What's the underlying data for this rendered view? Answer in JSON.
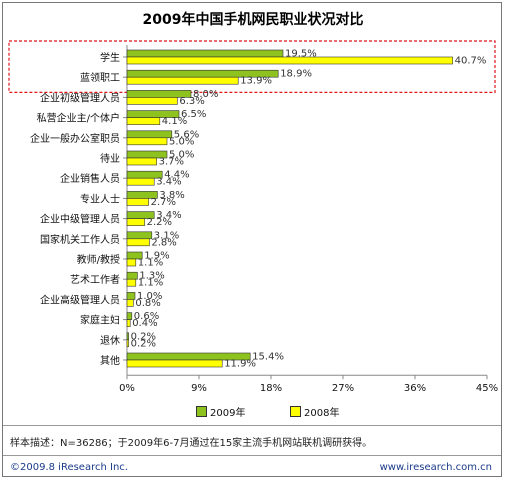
{
  "chart_data": {
    "type": "bar",
    "orientation": "horizontal",
    "title": "2009年中国手机网民职业状况对比",
    "categories": [
      "学生",
      "蓝领职工",
      "企业初级管理人员",
      "私营企业主/个体户",
      "企业一般办公室职员",
      "待业",
      "企业销售人员",
      "专业人士",
      "企业中级管理人员",
      "国家机关工作人员",
      "教师/教授",
      "艺术工作者",
      "企业高级管理人员",
      "家庭主妇",
      "退休",
      "其他"
    ],
    "series": [
      {
        "name": "2009年",
        "color": "#8dc21f",
        "values": [
          19.5,
          18.9,
          8.0,
          6.5,
          5.6,
          5.0,
          4.4,
          3.8,
          3.4,
          3.1,
          1.9,
          1.3,
          1.0,
          0.6,
          0.2,
          15.4
        ],
        "labels": [
          "19.5%",
          "18.9%",
          "8.0%",
          "6.5%",
          "5.6%",
          "5.0%",
          "4.4%",
          "3.8%",
          "3.4%",
          "3.1%",
          "1.9%",
          "1.3%",
          "1.0%",
          "0.6%",
          "0.2%",
          "15.4%"
        ]
      },
      {
        "name": "2008年",
        "color": "#ffff00",
        "values": [
          40.7,
          13.9,
          6.3,
          4.1,
          5.0,
          3.7,
          3.4,
          2.7,
          2.2,
          2.8,
          1.1,
          1.1,
          0.8,
          0.4,
          0.2,
          11.9
        ],
        "labels": [
          "40.7%",
          "13.9%",
          "6.3%",
          "4.1%",
          "5.0%",
          "3.7%",
          "3.4%",
          "2.7%",
          "2.2%",
          "2.8%",
          "1.1%",
          "1.1%",
          "0.8%",
          "0.4%",
          "0.2%",
          "11.9%"
        ]
      }
    ],
    "xlim": [
      0,
      45
    ],
    "xticks": [
      0,
      9,
      18,
      27,
      36,
      45
    ],
    "xtick_labels": [
      "0%",
      "9%",
      "18%",
      "27%",
      "36%",
      "45%"
    ],
    "highlighted_categories": [
      "学生",
      "蓝领职工"
    ],
    "legend_position": "bottom"
  },
  "footnote": "样本描述：N=36286；于2009年6-7月通过在15家主流手机网站联机调研获得。",
  "copyright": "©2009.8 iResearch Inc.",
  "website": "www.iresearch.com.cn"
}
